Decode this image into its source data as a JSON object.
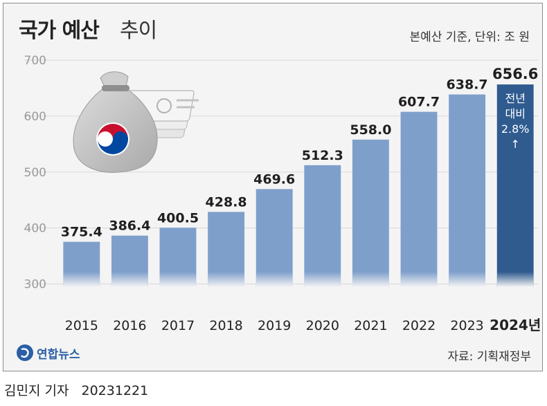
{
  "header": {
    "title_bold": "국가 예산",
    "title_light": "추이",
    "unit_note": "본예산 기준, 단위: 조 원"
  },
  "chart_data": {
    "type": "bar",
    "title": "국가 예산 추이",
    "categories": [
      "2015",
      "2016",
      "2017",
      "2018",
      "2019",
      "2020",
      "2021",
      "2022",
      "2023",
      "2024년"
    ],
    "values": [
      375.4,
      386.4,
      400.5,
      428.8,
      469.6,
      512.3,
      558.0,
      607.7,
      638.7,
      656.6
    ],
    "value_labels": [
      "375.4",
      "386.4",
      "400.5",
      "428.8",
      "469.6",
      "512.3",
      "558.0",
      "607.7",
      "638.7",
      "656.6"
    ],
    "yticks": [
      "700",
      "600",
      "500",
      "400",
      "300"
    ],
    "ytick_values": [
      700,
      600,
      500,
      400,
      300
    ],
    "ylim": [
      250,
      700
    ],
    "highlight_index": 9,
    "annotation": [
      "전년",
      "대비",
      "2.8%",
      "↑"
    ],
    "grid": true,
    "colors": {
      "bar": "#7f9fcb",
      "highlight": "#2f5b8f",
      "grid": "#d8d8d8"
    }
  },
  "footer": {
    "logo_text": "연합뉴스",
    "source": "자료: 기획재정부",
    "reporter": "김민지 기자",
    "date": "20231221"
  }
}
